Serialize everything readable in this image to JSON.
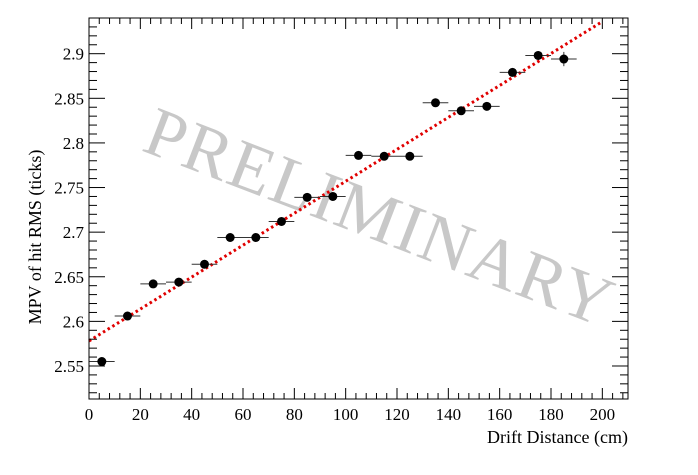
{
  "chart_data": {
    "type": "scatter",
    "title": "",
    "xlabel": "Drift Distance (cm)",
    "ylabel": "MPV of hit RMS (ticks)",
    "watermark": "PRELIMINARY",
    "xlim": [
      0,
      210
    ],
    "ylim": [
      2.513,
      2.94
    ],
    "x_ticks": [
      0,
      20,
      40,
      60,
      80,
      100,
      120,
      140,
      160,
      180,
      200
    ],
    "y_ticks": [
      2.55,
      2.6,
      2.65,
      2.7,
      2.75,
      2.8,
      2.85,
      2.9
    ],
    "y_tick_labels": [
      "2.55",
      "2.6",
      "2.65",
      "2.7",
      "2.75",
      "2.8",
      "2.85",
      "2.9"
    ],
    "grid": false,
    "series": [
      {
        "marker_color": "#000000",
        "x": [
          5,
          15,
          25,
          35,
          45,
          55,
          65,
          75,
          85,
          95,
          105,
          115,
          125,
          135,
          145,
          155,
          165,
          175,
          185
        ],
        "y": [
          2.555,
          2.606,
          2.642,
          2.644,
          2.664,
          2.694,
          2.694,
          2.712,
          2.739,
          2.74,
          2.786,
          2.785,
          2.785,
          2.845,
          2.836,
          2.841,
          2.879,
          2.898,
          2.894
        ],
        "x_err": [
          5,
          5,
          5,
          5,
          5,
          5,
          5,
          5,
          5,
          5,
          5,
          5,
          5,
          5,
          5,
          5,
          5,
          5,
          5
        ],
        "y_err": [
          0.004,
          0.003,
          0.003,
          0.003,
          0.003,
          0.003,
          0.003,
          0.003,
          0.003,
          0.003,
          0.003,
          0.003,
          0.003,
          0.003,
          0.003,
          0.003,
          0.004,
          0.005,
          0.008
        ]
      }
    ],
    "fit_line": {
      "color": "#e00000",
      "style": "dotted",
      "x": [
        0,
        200
      ],
      "y": [
        2.578,
        2.936
      ]
    }
  }
}
